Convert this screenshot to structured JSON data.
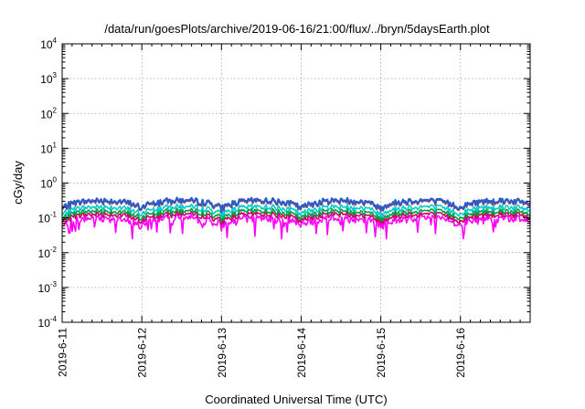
{
  "chart_data": {
    "type": "line",
    "title": "/data/run/goesPlots/archive/2019-06-16/21:00/flux/../bryn/5daysEarth.plot",
    "xlabel": "Coordinated Universal Time (UTC)",
    "ylabel": "cGy/day",
    "yscale": "log",
    "ylim": [
      0.0001,
      10000
    ],
    "xlim": [
      "2019-6-11",
      "2019-6-16 21:00"
    ],
    "x_tick_labels": [
      "2019-6-11",
      "2019-6-12",
      "2019-6-13",
      "2019-6-14",
      "2019-6-15",
      "2019-6-16"
    ],
    "y_ticks": [
      {
        "base": "10",
        "exp": "-4"
      },
      {
        "base": "10",
        "exp": "-3"
      },
      {
        "base": "10",
        "exp": "-2"
      },
      {
        "base": "10",
        "exp": "-1"
      },
      {
        "base": "10",
        "exp": "0"
      },
      {
        "base": "10",
        "exp": "1"
      },
      {
        "base": "10",
        "exp": "2"
      },
      {
        "base": "10",
        "exp": "3"
      },
      {
        "base": "10",
        "exp": "4"
      }
    ],
    "grid": true,
    "legend": "none",
    "series": [
      {
        "color": "#ff00ff",
        "level_median": 0.1,
        "dip_min": 0.025
      },
      {
        "color": "#cc0066",
        "level_median": 0.13
      },
      {
        "color": "#00a040",
        "level_median": 0.16
      },
      {
        "color": "#00cccc",
        "level_median": 0.21
      },
      {
        "color": "#cc2020",
        "level_median": 0.3
      },
      {
        "color": "#2b5cc8",
        "level_median": 0.32
      }
    ]
  }
}
